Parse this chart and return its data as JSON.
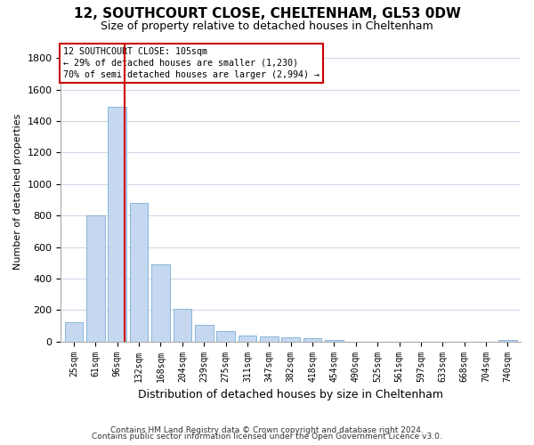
{
  "title1": "12, SOUTHCOURT CLOSE, CHELTENHAM, GL53 0DW",
  "title2": "Size of property relative to detached houses in Cheltenham",
  "xlabel": "Distribution of detached houses by size in Cheltenham",
  "ylabel": "Number of detached properties",
  "categories": [
    "25sqm",
    "61sqm",
    "96sqm",
    "132sqm",
    "168sqm",
    "204sqm",
    "239sqm",
    "275sqm",
    "311sqm",
    "347sqm",
    "382sqm",
    "418sqm",
    "454sqm",
    "490sqm",
    "525sqm",
    "561sqm",
    "597sqm",
    "633sqm",
    "668sqm",
    "704sqm",
    "740sqm"
  ],
  "values": [
    125,
    800,
    1490,
    880,
    490,
    205,
    105,
    65,
    40,
    35,
    28,
    22,
    12,
    0,
    0,
    0,
    0,
    0,
    0,
    0,
    12
  ],
  "bar_color": "#c5d8f0",
  "bar_edge_color": "#7aadd4",
  "vline_color": "#cc0000",
  "vline_index": 2,
  "annotation_text": "12 SOUTHCOURT CLOSE: 105sqm\n← 29% of detached houses are smaller (1,230)\n70% of semi-detached houses are larger (2,994) →",
  "annotation_box_color": "#ffffff",
  "annotation_box_edge": "#cc0000",
  "ylim": [
    0,
    1900
  ],
  "yticks": [
    0,
    200,
    400,
    600,
    800,
    1000,
    1200,
    1400,
    1600,
    1800
  ],
  "footnote1": "Contains HM Land Registry data © Crown copyright and database right 2024.",
  "footnote2": "Contains public sector information licensed under the Open Government Licence v3.0.",
  "bg_color": "#ffffff",
  "plot_bg_color": "#ffffff",
  "grid_color": "#d0d8e8"
}
